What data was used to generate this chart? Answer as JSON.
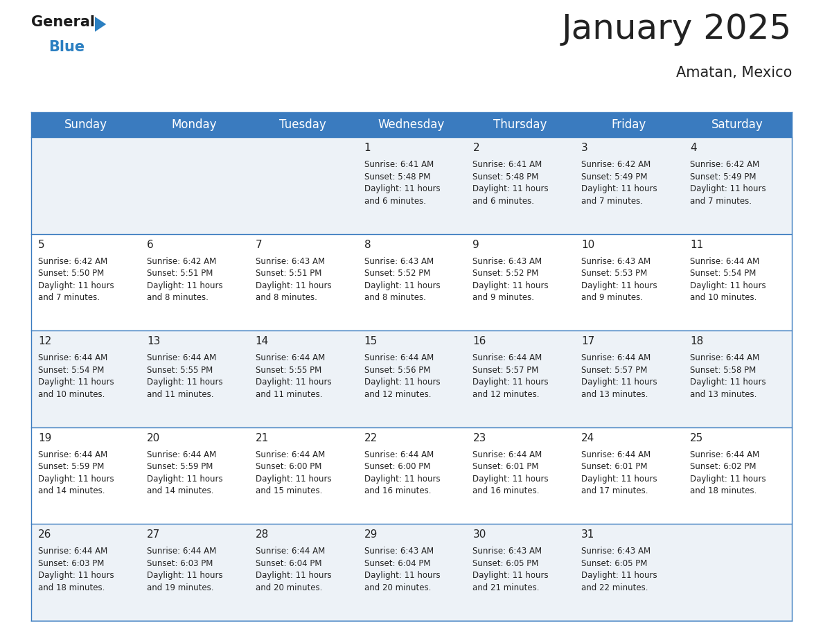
{
  "title": "January 2025",
  "subtitle": "Amatan, Mexico",
  "header_color": "#3a7bbf",
  "header_text_color": "#ffffff",
  "cell_bg_odd": "#edf2f7",
  "cell_bg_even": "#ffffff",
  "border_color": "#3a7bbf",
  "text_color": "#222222",
  "days_of_week": [
    "Sunday",
    "Monday",
    "Tuesday",
    "Wednesday",
    "Thursday",
    "Friday",
    "Saturday"
  ],
  "weeks": [
    [
      {
        "day": "",
        "info": ""
      },
      {
        "day": "",
        "info": ""
      },
      {
        "day": "",
        "info": ""
      },
      {
        "day": "1",
        "info": "Sunrise: 6:41 AM\nSunset: 5:48 PM\nDaylight: 11 hours\nand 6 minutes."
      },
      {
        "day": "2",
        "info": "Sunrise: 6:41 AM\nSunset: 5:48 PM\nDaylight: 11 hours\nand 6 minutes."
      },
      {
        "day": "3",
        "info": "Sunrise: 6:42 AM\nSunset: 5:49 PM\nDaylight: 11 hours\nand 7 minutes."
      },
      {
        "day": "4",
        "info": "Sunrise: 6:42 AM\nSunset: 5:49 PM\nDaylight: 11 hours\nand 7 minutes."
      }
    ],
    [
      {
        "day": "5",
        "info": "Sunrise: 6:42 AM\nSunset: 5:50 PM\nDaylight: 11 hours\nand 7 minutes."
      },
      {
        "day": "6",
        "info": "Sunrise: 6:42 AM\nSunset: 5:51 PM\nDaylight: 11 hours\nand 8 minutes."
      },
      {
        "day": "7",
        "info": "Sunrise: 6:43 AM\nSunset: 5:51 PM\nDaylight: 11 hours\nand 8 minutes."
      },
      {
        "day": "8",
        "info": "Sunrise: 6:43 AM\nSunset: 5:52 PM\nDaylight: 11 hours\nand 8 minutes."
      },
      {
        "day": "9",
        "info": "Sunrise: 6:43 AM\nSunset: 5:52 PM\nDaylight: 11 hours\nand 9 minutes."
      },
      {
        "day": "10",
        "info": "Sunrise: 6:43 AM\nSunset: 5:53 PM\nDaylight: 11 hours\nand 9 minutes."
      },
      {
        "day": "11",
        "info": "Sunrise: 6:44 AM\nSunset: 5:54 PM\nDaylight: 11 hours\nand 10 minutes."
      }
    ],
    [
      {
        "day": "12",
        "info": "Sunrise: 6:44 AM\nSunset: 5:54 PM\nDaylight: 11 hours\nand 10 minutes."
      },
      {
        "day": "13",
        "info": "Sunrise: 6:44 AM\nSunset: 5:55 PM\nDaylight: 11 hours\nand 11 minutes."
      },
      {
        "day": "14",
        "info": "Sunrise: 6:44 AM\nSunset: 5:55 PM\nDaylight: 11 hours\nand 11 minutes."
      },
      {
        "day": "15",
        "info": "Sunrise: 6:44 AM\nSunset: 5:56 PM\nDaylight: 11 hours\nand 12 minutes."
      },
      {
        "day": "16",
        "info": "Sunrise: 6:44 AM\nSunset: 5:57 PM\nDaylight: 11 hours\nand 12 minutes."
      },
      {
        "day": "17",
        "info": "Sunrise: 6:44 AM\nSunset: 5:57 PM\nDaylight: 11 hours\nand 13 minutes."
      },
      {
        "day": "18",
        "info": "Sunrise: 6:44 AM\nSunset: 5:58 PM\nDaylight: 11 hours\nand 13 minutes."
      }
    ],
    [
      {
        "day": "19",
        "info": "Sunrise: 6:44 AM\nSunset: 5:59 PM\nDaylight: 11 hours\nand 14 minutes."
      },
      {
        "day": "20",
        "info": "Sunrise: 6:44 AM\nSunset: 5:59 PM\nDaylight: 11 hours\nand 14 minutes."
      },
      {
        "day": "21",
        "info": "Sunrise: 6:44 AM\nSunset: 6:00 PM\nDaylight: 11 hours\nand 15 minutes."
      },
      {
        "day": "22",
        "info": "Sunrise: 6:44 AM\nSunset: 6:00 PM\nDaylight: 11 hours\nand 16 minutes."
      },
      {
        "day": "23",
        "info": "Sunrise: 6:44 AM\nSunset: 6:01 PM\nDaylight: 11 hours\nand 16 minutes."
      },
      {
        "day": "24",
        "info": "Sunrise: 6:44 AM\nSunset: 6:01 PM\nDaylight: 11 hours\nand 17 minutes."
      },
      {
        "day": "25",
        "info": "Sunrise: 6:44 AM\nSunset: 6:02 PM\nDaylight: 11 hours\nand 18 minutes."
      }
    ],
    [
      {
        "day": "26",
        "info": "Sunrise: 6:44 AM\nSunset: 6:03 PM\nDaylight: 11 hours\nand 18 minutes."
      },
      {
        "day": "27",
        "info": "Sunrise: 6:44 AM\nSunset: 6:03 PM\nDaylight: 11 hours\nand 19 minutes."
      },
      {
        "day": "28",
        "info": "Sunrise: 6:44 AM\nSunset: 6:04 PM\nDaylight: 11 hours\nand 20 minutes."
      },
      {
        "day": "29",
        "info": "Sunrise: 6:43 AM\nSunset: 6:04 PM\nDaylight: 11 hours\nand 20 minutes."
      },
      {
        "day": "30",
        "info": "Sunrise: 6:43 AM\nSunset: 6:05 PM\nDaylight: 11 hours\nand 21 minutes."
      },
      {
        "day": "31",
        "info": "Sunrise: 6:43 AM\nSunset: 6:05 PM\nDaylight: 11 hours\nand 22 minutes."
      },
      {
        "day": "",
        "info": ""
      }
    ]
  ],
  "logo_general_color": "#1a1a1a",
  "logo_blue_color": "#2b7fc1",
  "logo_triangle_color": "#2b7fc1",
  "title_fontsize": 36,
  "subtitle_fontsize": 15,
  "header_fontsize": 12,
  "day_num_fontsize": 11,
  "info_fontsize": 8.5
}
